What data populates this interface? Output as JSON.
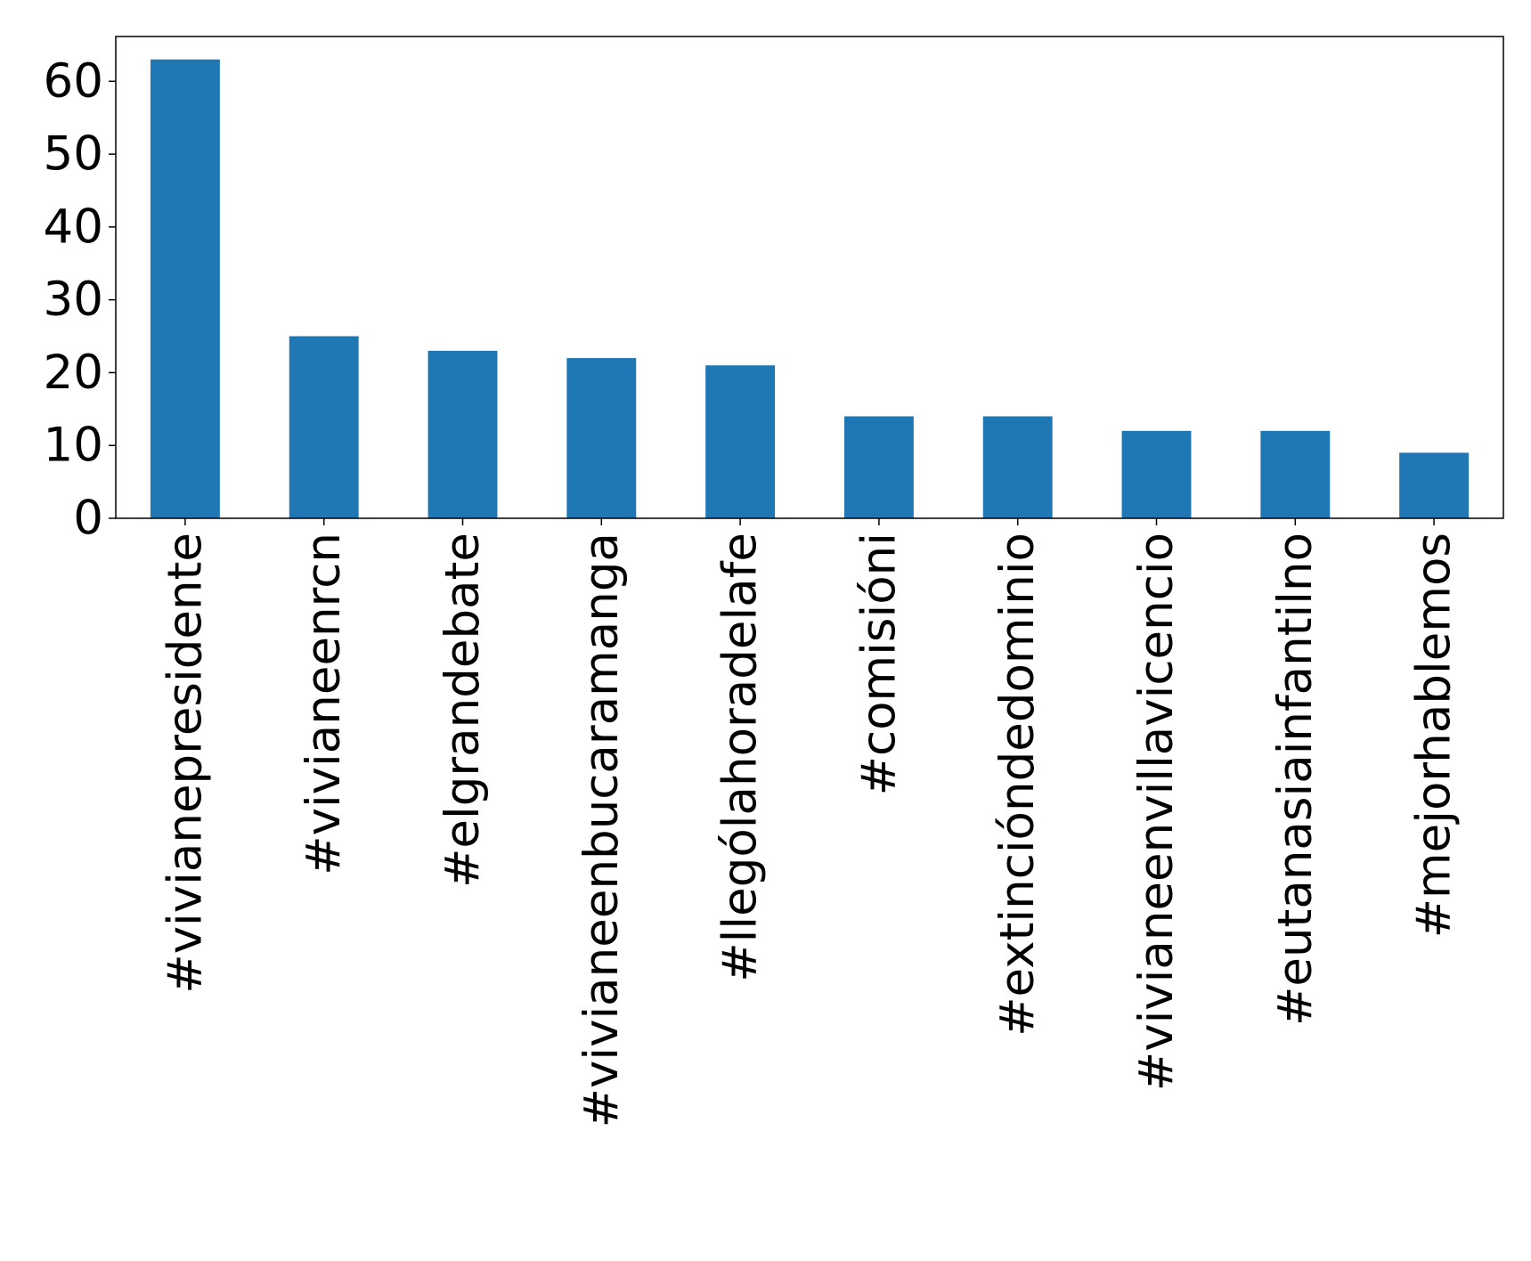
{
  "chart_data": {
    "type": "bar",
    "categories": [
      "#vivianepresidente",
      "#vivianeenrcn",
      "#elgrandebate",
      "#vivianeenbucaramanga",
      "#llególahoradelafe",
      "#comisióni",
      "#extincióndedominio",
      "#vivianeenvillavicencio",
      "#eutanasiainfantilno",
      "#mejorhablemos"
    ],
    "values": [
      63,
      25,
      23,
      22,
      21,
      14,
      14,
      12,
      12,
      9
    ],
    "color": "#1f77b4",
    "ylim": [
      0,
      66.15
    ],
    "yticks": [
      0,
      10,
      20,
      30,
      40,
      50,
      60
    ],
    "grid": false
  }
}
